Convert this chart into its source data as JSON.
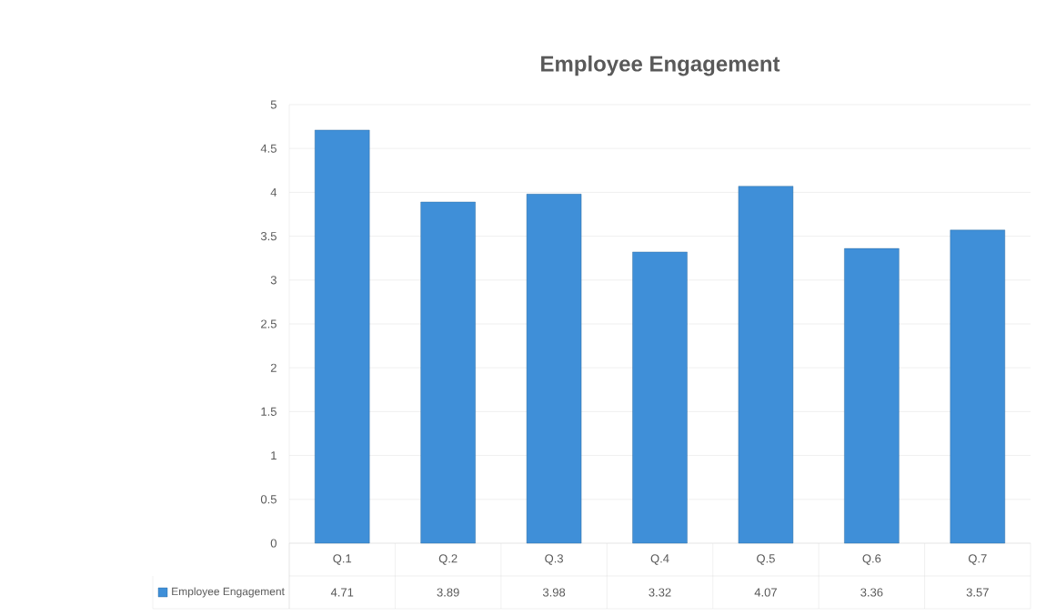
{
  "chart_data": {
    "type": "bar",
    "title": "Employee Engagement",
    "categories": [
      "Q.1",
      "Q.2",
      "Q.3",
      "Q.4",
      "Q.5",
      "Q.6",
      "Q.7"
    ],
    "series": [
      {
        "name": "Employee Engagement",
        "color": "#3f8fd8",
        "values": [
          4.71,
          3.89,
          3.98,
          3.32,
          4.07,
          3.36,
          3.57
        ]
      }
    ],
    "ylim": [
      0,
      5
    ],
    "yticks": [
      0,
      0.5,
      1,
      1.5,
      2,
      2.5,
      3,
      3.5,
      4,
      4.5,
      5
    ],
    "grid": "y",
    "legend": "bottom",
    "data_labels": true
  }
}
